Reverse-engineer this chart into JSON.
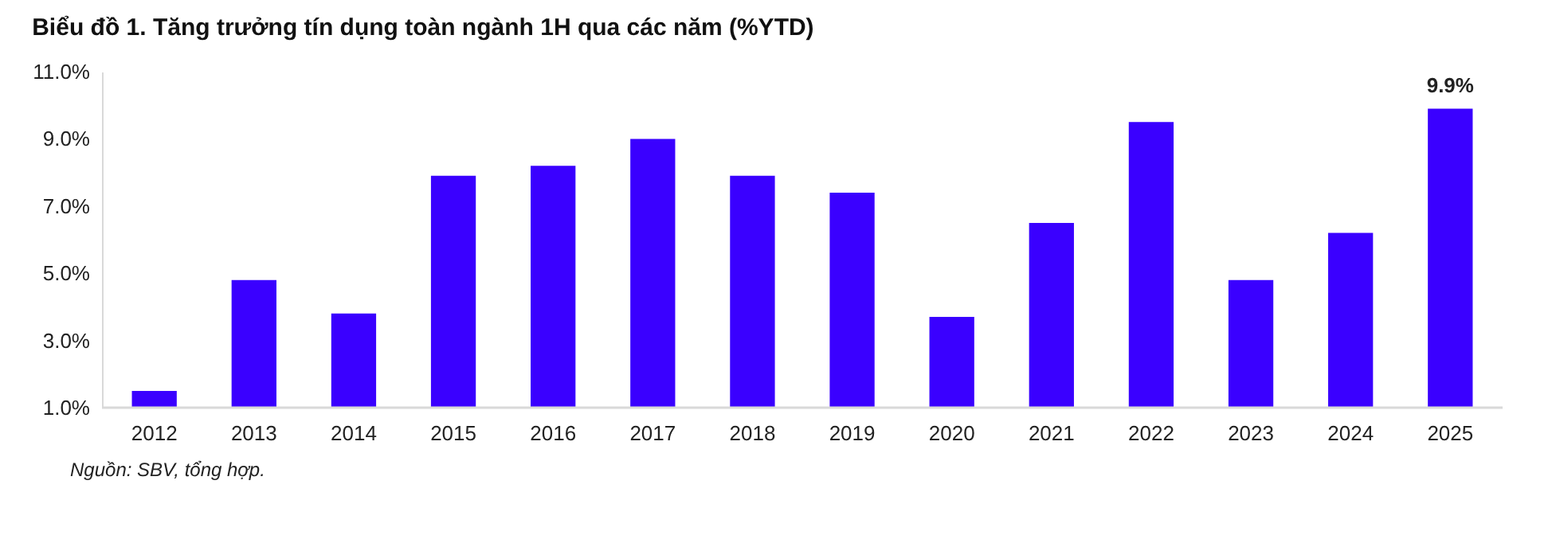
{
  "chart_data": {
    "type": "bar",
    "title": "Biểu đồ 1. Tăng trưởng tín dụng toàn ngành 1H qua các năm (%YTD)",
    "categories": [
      "2012",
      "2013",
      "2014",
      "2015",
      "2016",
      "2017",
      "2018",
      "2019",
      "2020",
      "2021",
      "2022",
      "2023",
      "2024",
      "2025"
    ],
    "values": [
      1.5,
      4.8,
      3.8,
      7.9,
      8.2,
      9.0,
      7.9,
      7.4,
      3.7,
      6.5,
      9.5,
      4.8,
      6.2,
      9.9
    ],
    "value_labels": [
      null,
      null,
      null,
      null,
      null,
      null,
      null,
      null,
      null,
      null,
      null,
      null,
      null,
      "9.9%"
    ],
    "color": "#3a00ff",
    "ylim": [
      1,
      11
    ],
    "yticks": [
      {
        "value": 1,
        "label": "1.0%"
      },
      {
        "value": 3,
        "label": "3.0%"
      },
      {
        "value": 5,
        "label": "5.0%"
      },
      {
        "value": 7,
        "label": "7.0%"
      },
      {
        "value": 9,
        "label": "9.0%"
      },
      {
        "value": 11,
        "label": "11.0%"
      }
    ],
    "grid": false,
    "annotations": [
      "Nguồn: SBV, tổng hợp."
    ]
  }
}
